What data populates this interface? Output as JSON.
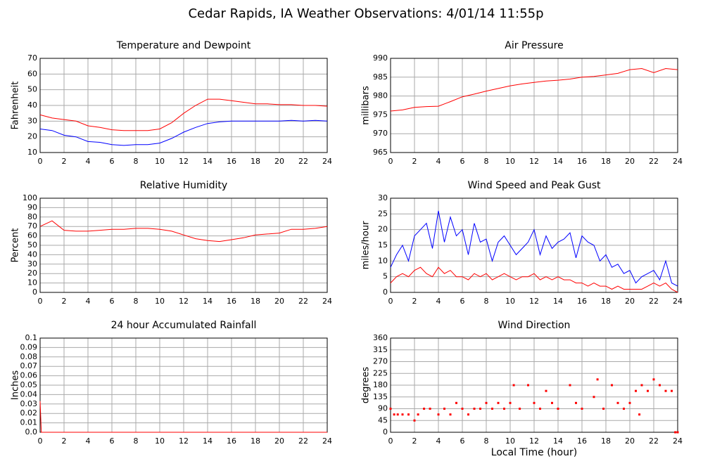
{
  "title": "Cedar Rapids, IA Weather Observations: 4/01/14 11:55p",
  "chart_data": [
    {
      "type": "line",
      "title": "Temperature and Dewpoint",
      "ylabel": "Fahrenheit",
      "x": [
        0,
        1,
        2,
        3,
        4,
        5,
        6,
        7,
        8,
        9,
        10,
        11,
        12,
        13,
        14,
        15,
        16,
        17,
        18,
        19,
        20,
        21,
        22,
        23,
        24
      ],
      "series": [
        {
          "color": "#ff0000",
          "values": [
            34,
            32,
            31,
            30,
            27,
            26,
            24.5,
            24,
            24,
            24,
            25,
            29,
            35,
            40,
            44,
            44,
            43,
            42,
            41,
            41,
            40.5,
            40.5,
            40,
            40,
            39.5
          ]
        },
        {
          "color": "#0000ff",
          "values": [
            25,
            24,
            21,
            20,
            17,
            16.5,
            15,
            14.5,
            15,
            15,
            16,
            19,
            23,
            26,
            28.5,
            29.5,
            30,
            30,
            30,
            30,
            30,
            30.5,
            30,
            30.5,
            30
          ]
        }
      ],
      "xlim": [
        0,
        24
      ],
      "xticks": [
        0,
        2,
        4,
        6,
        8,
        10,
        12,
        14,
        16,
        18,
        20,
        22,
        24
      ],
      "ylim": [
        10,
        70
      ],
      "yticks": [
        10,
        20,
        30,
        40,
        50,
        60,
        70
      ],
      "grid": true
    },
    {
      "type": "line",
      "title": "Air Pressure",
      "ylabel": "millibars",
      "x": [
        0,
        1,
        2,
        3,
        4,
        5,
        6,
        7,
        8,
        9,
        10,
        11,
        12,
        13,
        14,
        15,
        16,
        17,
        18,
        19,
        20,
        21,
        22,
        23,
        24
      ],
      "series": [
        {
          "color": "#ff0000",
          "values": [
            976,
            976.3,
            977,
            977.2,
            977.3,
            978.5,
            979.8,
            980.5,
            981.3,
            982,
            982.7,
            983.2,
            983.6,
            984,
            984.2,
            984.5,
            985,
            985.2,
            985.6,
            986,
            987,
            987.3,
            986.2,
            987.3,
            987
          ]
        }
      ],
      "xlim": [
        0,
        24
      ],
      "xticks": [
        0,
        2,
        4,
        6,
        8,
        10,
        12,
        14,
        16,
        18,
        20,
        22,
        24
      ],
      "ylim": [
        965,
        990
      ],
      "yticks": [
        965,
        970,
        975,
        980,
        985,
        990
      ],
      "grid": true
    },
    {
      "type": "line",
      "title": "Relative Humidity",
      "ylabel": "Percent",
      "x": [
        0,
        1,
        2,
        3,
        4,
        5,
        6,
        7,
        8,
        9,
        10,
        11,
        12,
        13,
        14,
        15,
        16,
        17,
        18,
        19,
        20,
        21,
        22,
        23,
        24
      ],
      "series": [
        {
          "color": "#ff0000",
          "values": [
            70,
            76,
            66,
            65,
            65,
            66,
            67,
            67,
            68,
            68,
            67,
            65,
            61,
            57,
            55,
            54,
            56,
            58,
            61,
            62,
            63,
            67,
            67,
            68,
            70
          ]
        }
      ],
      "xlim": [
        0,
        24
      ],
      "xticks": [
        0,
        2,
        4,
        6,
        8,
        10,
        12,
        14,
        16,
        18,
        20,
        22,
        24
      ],
      "ylim": [
        0,
        100
      ],
      "yticks": [
        0,
        10,
        20,
        30,
        40,
        50,
        60,
        70,
        80,
        90,
        100
      ],
      "grid": true
    },
    {
      "type": "line",
      "title": "Wind Speed and Peak Gust",
      "ylabel": "miles/hour",
      "x": [
        0,
        0.5,
        1,
        1.5,
        2,
        2.5,
        3,
        3.5,
        4,
        4.5,
        5,
        5.5,
        6,
        6.5,
        7,
        7.5,
        8,
        8.5,
        9,
        9.5,
        10,
        10.5,
        11,
        11.5,
        12,
        12.5,
        13,
        13.5,
        14,
        14.5,
        15,
        15.5,
        16,
        16.5,
        17,
        17.5,
        18,
        18.5,
        19,
        19.5,
        20,
        20.5,
        21,
        21.5,
        22,
        22.5,
        23,
        23.5,
        24
      ],
      "series": [
        {
          "color": "#0000ff",
          "values": [
            8,
            12,
            15,
            10,
            18,
            20,
            22,
            14,
            26,
            16,
            24,
            18,
            20,
            12,
            22,
            16,
            17,
            10,
            16,
            18,
            15,
            12,
            14,
            16,
            20,
            12,
            18,
            14,
            16,
            17,
            19,
            11,
            18,
            16,
            15,
            10,
            12,
            8,
            9,
            6,
            7,
            3,
            5,
            6,
            7,
            4,
            10,
            3,
            2
          ]
        },
        {
          "color": "#ff0000",
          "values": [
            3,
            5,
            6,
            5,
            7,
            8,
            6,
            5,
            8,
            6,
            7,
            5,
            5,
            4,
            6,
            5,
            6,
            4,
            5,
            6,
            5,
            4,
            5,
            5,
            6,
            4,
            5,
            4,
            5,
            4,
            4,
            3,
            3,
            2,
            3,
            2,
            2,
            1,
            2,
            1,
            1,
            1,
            1,
            2,
            3,
            2,
            3,
            1,
            0
          ]
        }
      ],
      "xlim": [
        0,
        24
      ],
      "xticks": [
        0,
        2,
        4,
        6,
        8,
        10,
        12,
        14,
        16,
        18,
        20,
        22,
        24
      ],
      "ylim": [
        0,
        30
      ],
      "yticks": [
        0,
        5,
        10,
        15,
        20,
        25,
        30
      ],
      "grid": true
    },
    {
      "type": "line",
      "title": "24 hour Accumulated Rainfall",
      "ylabel": "Inches",
      "x": [
        0,
        0.1,
        24
      ],
      "series": [
        {
          "color": "#ff0000",
          "values": [
            0.033,
            0,
            0
          ]
        }
      ],
      "xlim": [
        0,
        24
      ],
      "xticks": [
        0,
        2,
        4,
        6,
        8,
        10,
        12,
        14,
        16,
        18,
        20,
        22,
        24
      ],
      "ylim": [
        0,
        0.1
      ],
      "yticks": [
        {
          "value": 0,
          "label": "0.0"
        },
        0.01,
        0.02,
        0.03,
        0.04,
        0.05,
        0.06,
        0.07,
        0.08,
        0.09,
        0.1
      ],
      "grid": true
    },
    {
      "type": "scatter",
      "title": "Wind Direction",
      "ylabel": "degrees",
      "xlabel": "Local Time (hour)",
      "x": [
        0,
        0.3,
        0.6,
        1,
        1.5,
        2,
        2.3,
        2.8,
        3.3,
        4,
        4.5,
        5,
        5.5,
        6,
        6.5,
        7,
        7.5,
        8,
        8.5,
        9,
        9.5,
        10,
        10.3,
        10.8,
        11.5,
        12,
        12.5,
        13,
        13.5,
        14,
        15,
        15.5,
        16,
        17,
        17.3,
        17.8,
        18.5,
        19,
        19.5,
        20,
        20.5,
        20.8,
        21,
        21.5,
        22,
        22.5,
        23,
        23.5,
        23.8,
        24
      ],
      "series": [
        {
          "color": "#ff0000",
          "values": [
            90,
            68,
            68,
            68,
            68,
            45,
            68,
            90,
            90,
            68,
            90,
            68,
            112,
            90,
            68,
            90,
            90,
            112,
            90,
            112,
            90,
            112,
            180,
            90,
            180,
            112,
            90,
            158,
            112,
            90,
            180,
            112,
            90,
            135,
            202,
            90,
            180,
            112,
            90,
            112,
            158,
            68,
            180,
            158,
            202,
            180,
            158,
            158,
            0,
            0
          ]
        }
      ],
      "xlim": [
        0,
        24
      ],
      "xticks": [
        0,
        2,
        4,
        6,
        8,
        10,
        12,
        14,
        16,
        18,
        20,
        22,
        24
      ],
      "ylim": [
        0,
        360
      ],
      "yticks": [
        0,
        45,
        90,
        135,
        180,
        225,
        270,
        315,
        360
      ],
      "grid": true
    }
  ]
}
